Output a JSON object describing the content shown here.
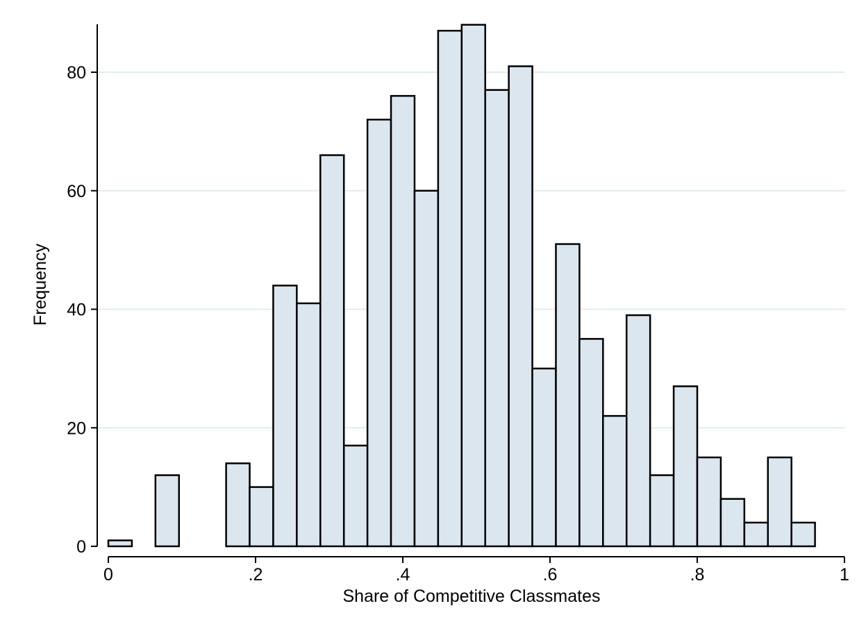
{
  "chart_data": {
    "type": "bar",
    "xlabel": "Share of Competitive Classmates",
    "ylabel": "Frequency",
    "xlim": [
      0,
      1
    ],
    "ylim": [
      0,
      88
    ],
    "xticks": [
      0,
      0.2,
      0.4,
      0.6,
      0.8,
      1
    ],
    "xtick_labels": [
      "0",
      ".2",
      ".4",
      ".6",
      ".8",
      "1"
    ],
    "yticks": [
      0,
      20,
      40,
      60,
      80
    ],
    "ytick_labels": [
      "0",
      "20",
      "40",
      "60",
      "80"
    ],
    "grid": true,
    "bin_width": 0.032,
    "bins": [
      {
        "x0": 0.0,
        "x1": 0.032,
        "value": 1
      },
      {
        "x0": 0.064,
        "x1": 0.096,
        "value": 12
      },
      {
        "x0": 0.16,
        "x1": 0.192,
        "value": 14
      },
      {
        "x0": 0.192,
        "x1": 0.224,
        "value": 10
      },
      {
        "x0": 0.224,
        "x1": 0.256,
        "value": 44
      },
      {
        "x0": 0.256,
        "x1": 0.288,
        "value": 41
      },
      {
        "x0": 0.288,
        "x1": 0.32,
        "value": 66
      },
      {
        "x0": 0.32,
        "x1": 0.352,
        "value": 17
      },
      {
        "x0": 0.352,
        "x1": 0.384,
        "value": 72
      },
      {
        "x0": 0.384,
        "x1": 0.416,
        "value": 76
      },
      {
        "x0": 0.416,
        "x1": 0.448,
        "value": 60
      },
      {
        "x0": 0.448,
        "x1": 0.48,
        "value": 87
      },
      {
        "x0": 0.48,
        "x1": 0.512,
        "value": 88
      },
      {
        "x0": 0.512,
        "x1": 0.544,
        "value": 77
      },
      {
        "x0": 0.544,
        "x1": 0.576,
        "value": 81
      },
      {
        "x0": 0.576,
        "x1": 0.608,
        "value": 30
      },
      {
        "x0": 0.608,
        "x1": 0.64,
        "value": 51
      },
      {
        "x0": 0.64,
        "x1": 0.672,
        "value": 35
      },
      {
        "x0": 0.672,
        "x1": 0.704,
        "value": 22
      },
      {
        "x0": 0.704,
        "x1": 0.736,
        "value": 39
      },
      {
        "x0": 0.736,
        "x1": 0.768,
        "value": 12
      },
      {
        "x0": 0.768,
        "x1": 0.8,
        "value": 27
      },
      {
        "x0": 0.8,
        "x1": 0.832,
        "value": 15
      },
      {
        "x0": 0.832,
        "x1": 0.864,
        "value": 8
      },
      {
        "x0": 0.864,
        "x1": 0.896,
        "value": 4
      },
      {
        "x0": 0.896,
        "x1": 0.928,
        "value": 15
      },
      {
        "x0": 0.928,
        "x1": 0.96,
        "value": 4
      }
    ],
    "colors": {
      "bar_fill": "#dce6ee",
      "bar_stroke": "#000000",
      "grid": "#e2eeee",
      "axis": "#000000"
    }
  }
}
